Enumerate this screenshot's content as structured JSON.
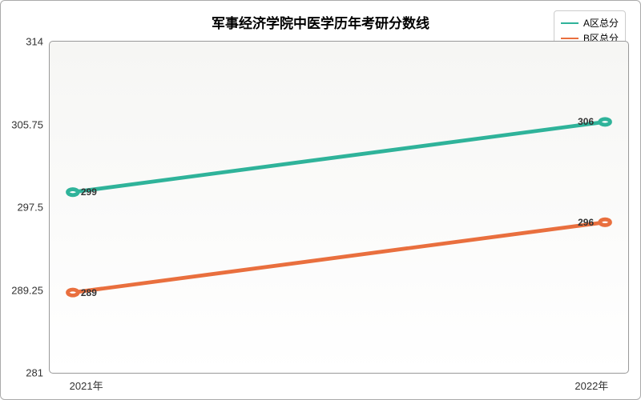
{
  "chart": {
    "type": "line",
    "title": "军事经济学院中医学历年考研分数线",
    "title_fontsize": 17,
    "title_fontweight": "bold",
    "background_color": "#ffffff",
    "background_gradient": {
      "from": "#f6f6f4",
      "to": "#ffffff"
    },
    "border_color": "#aaaaaa",
    "plot_border_color": "#999999",
    "x": {
      "categories": [
        "2021年",
        "2022年"
      ]
    },
    "y": {
      "min": 281,
      "max": 314,
      "ticks": [
        281,
        289.25,
        297.5,
        305.75,
        314
      ],
      "tick_labels": [
        "281",
        "289.25",
        "297.5",
        "305.75",
        "314"
      ]
    },
    "series": [
      {
        "name": "A区总分",
        "color": "#2fb39a",
        "line_width": 1.6,
        "marker": "circle",
        "marker_size": 4,
        "marker_fill": "#ffffff",
        "values": [
          299,
          306
        ],
        "labels": [
          "299",
          "306"
        ]
      },
      {
        "name": "B区总分",
        "color": "#e96f3e",
        "line_width": 1.6,
        "marker": "circle",
        "marker_size": 4,
        "marker_fill": "#ffffff",
        "values": [
          289,
          296
        ],
        "labels": [
          "289",
          "296"
        ]
      }
    ],
    "label_fontsize": 12,
    "label_fontweight": "bold",
    "axis_fontsize": 13,
    "legend": {
      "position": "top-right",
      "border_color": "#cccccc",
      "fontsize": 12
    }
  }
}
